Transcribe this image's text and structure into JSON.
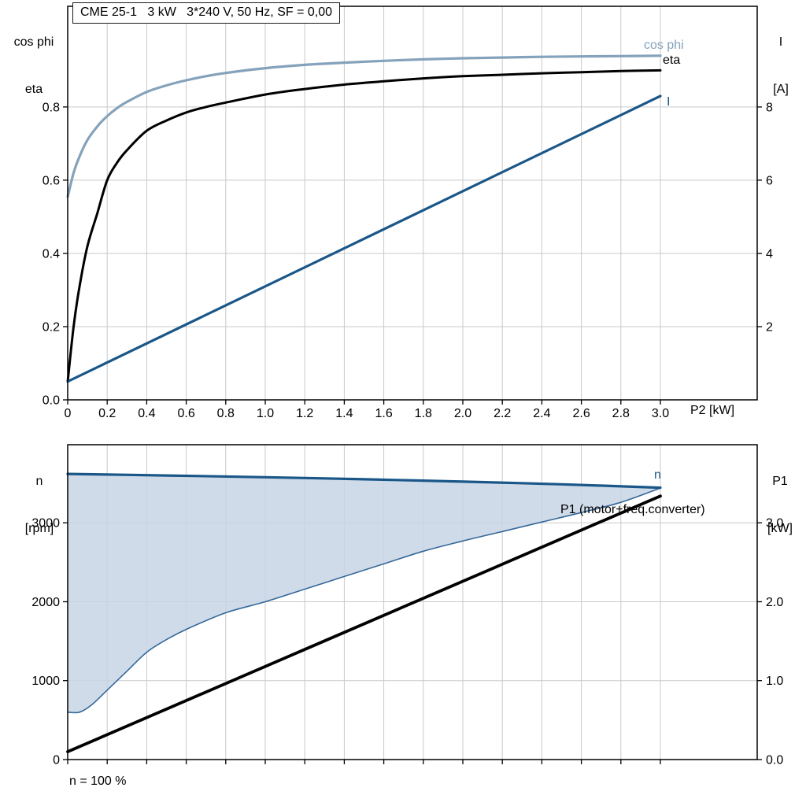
{
  "title_box": "CME 25-1   3 kW   3*240 V, 50 Hz, SF = 0,00",
  "labels": {
    "top_left": [
      "cos phi",
      "eta"
    ],
    "top_right": [
      "I",
      "[A]"
    ],
    "x_axis": "P2 [kW]",
    "bottom_left": [
      "n",
      "[rpm]"
    ],
    "bottom_right": [
      "P1",
      "[kW]"
    ],
    "footnote": "n = 100 %"
  },
  "colors": {
    "cos_phi": "#84a2bb",
    "eta": "#000000",
    "line_blue": "#1a5788",
    "band_line": "#35689a",
    "fill": "#c7d5e4",
    "grid": "#c9c9c9",
    "axis": "#000000"
  },
  "chart_data": [
    {
      "type": "line",
      "title": "CME 25-1   3 kW   3*240 V, 50 Hz, SF = 0,00",
      "xlabel": "P2 [kW]",
      "xlim": [
        0,
        3.49
      ],
      "x_tick_values": [
        0,
        0.2,
        0.4,
        0.6,
        0.8,
        1.0,
        1.2,
        1.4,
        1.6,
        1.8,
        2.0,
        2.2,
        2.4,
        2.6,
        2.8,
        3.0
      ],
      "x_tick_labels": [
        "0",
        "0.2",
        "0.4",
        "0.6",
        "0.8",
        "1.0",
        "1.2",
        "1.4",
        "1.6",
        "1.8",
        "2.0",
        "2.2",
        "2.4",
        "2.6",
        "2.8",
        "3.0"
      ],
      "left_axis": {
        "label": "cos phi / eta",
        "tick_values": [
          0,
          0.2,
          0.4,
          0.6,
          0.8
        ],
        "tick_labels": [
          "0.0",
          "0.2",
          "0.4",
          "0.6",
          "0.8"
        ],
        "lim": [
          0,
          1.075
        ]
      },
      "right_axis": {
        "label": "I [A]",
        "tick_values": [
          2,
          4,
          6,
          8
        ],
        "tick_labels": [
          "2",
          "4",
          "6",
          "8"
        ],
        "lim": [
          0,
          10.75
        ]
      },
      "grid": true,
      "legend_position": "inline-curve-labels",
      "series": [
        {
          "name": "cos phi",
          "axis": "left",
          "color_key": "cos_phi",
          "width": 3.2,
          "x": [
            0,
            0.03,
            0.06,
            0.1,
            0.15,
            0.2,
            0.25,
            0.3,
            0.4,
            0.5,
            0.6,
            0.7,
            0.8,
            1.0,
            1.2,
            1.4,
            1.6,
            1.8,
            2.0,
            2.2,
            2.4,
            2.6,
            2.8,
            3.0
          ],
          "y": [
            0.555,
            0.62,
            0.665,
            0.71,
            0.747,
            0.775,
            0.797,
            0.814,
            0.841,
            0.859,
            0.873,
            0.884,
            0.893,
            0.906,
            0.915,
            0.921,
            0.926,
            0.93,
            0.933,
            0.935,
            0.937,
            0.938,
            0.939,
            0.94
          ]
        },
        {
          "name": "eta",
          "axis": "left",
          "color_key": "eta",
          "width": 3,
          "x": [
            0,
            0.03,
            0.06,
            0.1,
            0.15,
            0.2,
            0.25,
            0.3,
            0.4,
            0.5,
            0.6,
            0.7,
            0.8,
            1.0,
            1.2,
            1.4,
            1.6,
            1.8,
            2.0,
            2.2,
            2.4,
            2.6,
            2.8,
            3.0
          ],
          "y": [
            0.05,
            0.2,
            0.31,
            0.42,
            0.51,
            0.6,
            0.648,
            0.682,
            0.735,
            0.763,
            0.785,
            0.8,
            0.812,
            0.834,
            0.849,
            0.861,
            0.87,
            0.878,
            0.884,
            0.888,
            0.892,
            0.895,
            0.898,
            0.9
          ]
        },
        {
          "name": "I",
          "axis": "right",
          "color_key": "line_blue",
          "width": 3.2,
          "x": [
            0,
            3.0
          ],
          "y": [
            0.5,
            8.3
          ]
        }
      ]
    },
    {
      "type": "line",
      "xlabel": "",
      "footnote": "n = 100 %",
      "xlim": [
        0,
        3.49
      ],
      "x_tick_values": [
        0,
        0.2,
        0.4,
        0.6,
        0.8,
        1.0,
        1.2,
        1.4,
        1.6,
        1.8,
        2.0,
        2.2,
        2.4,
        2.6,
        2.8,
        3.0
      ],
      "x_tick_labels": [
        "",
        "",
        "",
        "",
        "",
        "",
        "",
        "",
        "",
        "",
        "",
        "",
        "",
        "",
        "",
        ""
      ],
      "left_axis": {
        "label": "n [rpm]",
        "tick_values": [
          0,
          1000,
          2000,
          3000
        ],
        "tick_labels": [
          "0",
          "1000",
          "2000",
          "3000"
        ],
        "lim": [
          0,
          3990
        ]
      },
      "right_axis": {
        "label": "P1 [kW]",
        "tick_values": [
          0,
          1,
          2,
          3
        ],
        "tick_labels": [
          "0.0",
          "1.0",
          "2.0",
          "3.0"
        ],
        "lim": [
          0,
          3.99
        ]
      },
      "grid": true,
      "series": [
        {
          "name": "n",
          "axis": "left",
          "color_key": "line_blue",
          "width": 3.2,
          "x": [
            0,
            0.5,
            1.0,
            1.5,
            2.0,
            2.5,
            3.0
          ],
          "y": [
            3620,
            3600,
            3578,
            3552,
            3522,
            3488,
            3445
          ]
        },
        {
          "name": "P1 (motor+freq.converter)",
          "axis": "right",
          "color_key": "eta",
          "width": 3.8,
          "x": [
            0,
            3.0
          ],
          "y": [
            0.1,
            3.34
          ]
        }
      ],
      "band": {
        "name": "n range",
        "upper_series": "n",
        "color_key": "fill",
        "line_color_key": "band_line",
        "lower": {
          "x": [
            0,
            0.06,
            0.12,
            0.2,
            0.3,
            0.4,
            0.5,
            0.6,
            0.8,
            1.0,
            1.2,
            1.4,
            1.6,
            1.8,
            2.0,
            2.2,
            2.4,
            2.6,
            2.8,
            3.0
          ],
          "y": [
            600,
            600,
            690,
            880,
            1120,
            1360,
            1520,
            1650,
            1860,
            2000,
            2160,
            2320,
            2480,
            2640,
            2770,
            2890,
            3010,
            3130,
            3260,
            3440
          ]
        }
      }
    }
  ]
}
